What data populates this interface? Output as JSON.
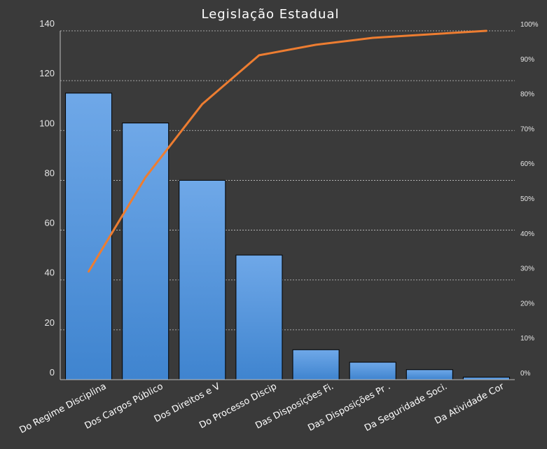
{
  "chart_data": {
    "type": "bar",
    "title": "Legislação Estadual",
    "categories": [
      "Do Regime Disciplina",
      "Dos Cargos Público",
      "Dos Direitos e V",
      "Do Processo Discip",
      "Das Disposições Fi.",
      "Das Disposições Pr .",
      "Da Seguridade Soci.",
      "Da Atividade Cor"
    ],
    "series": [
      {
        "type": "bar",
        "values": [
          115,
          103,
          80,
          50,
          12,
          7,
          4,
          1
        ]
      },
      {
        "type": "line",
        "axis": "right",
        "values": [
          0.31,
          0.58,
          0.79,
          0.93,
          0.96,
          0.98,
          0.99,
          1.0
        ]
      }
    ],
    "yticks_left": [
      "0",
      "20",
      "40",
      "60",
      "80",
      "100",
      "120",
      "140"
    ],
    "ylim_left": [
      0,
      140
    ],
    "yticks_right": [
      "0%",
      "10%",
      "20%",
      "30%",
      "40%",
      "50%",
      "60%",
      "70%",
      "80%",
      "90%",
      "100%"
    ],
    "ylim_right": [
      0,
      1
    ],
    "grid": true,
    "colors": {
      "background": "#3a3a3a",
      "bar_top": "#6fa8e8",
      "bar_bottom": "#3f84cf",
      "line": "#ed7d31",
      "grid": "#c8c8c8",
      "axis": "#bfbfbf"
    }
  }
}
